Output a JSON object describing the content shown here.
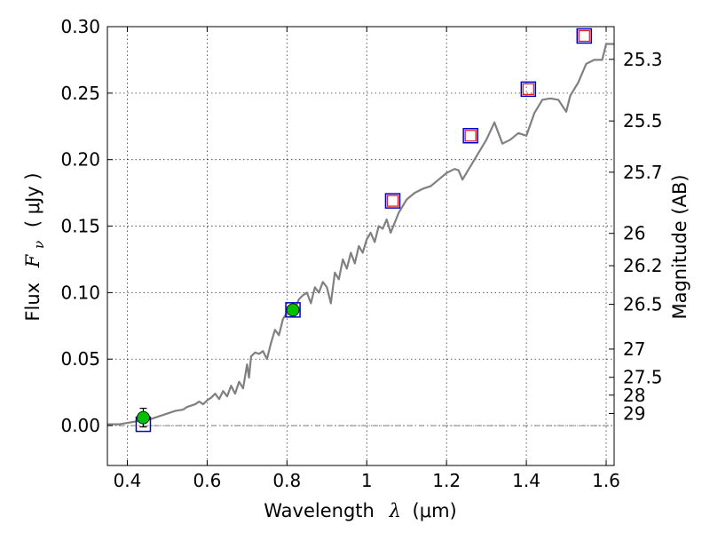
{
  "chart_data": {
    "type": "scatter",
    "title": "",
    "xlabel": {
      "prefix": "Wavelength",
      "lambda": "λ",
      "unit": "(μm)"
    },
    "ylabel": {
      "prefix": "Flux",
      "symbol": "F",
      "subscript": "ν",
      "unit": "( μJy )"
    },
    "y2label": "Magnitude (AB)",
    "xlim": [
      0.35,
      1.62
    ],
    "ylim": [
      -0.03,
      0.3
    ],
    "grid": true,
    "x_ticks": [
      {
        "value": 0.4,
        "label": "0.4"
      },
      {
        "value": 0.6,
        "label": "0.6"
      },
      {
        "value": 0.8,
        "label": "0.8"
      },
      {
        "value": 1.0,
        "label": "1"
      },
      {
        "value": 1.2,
        "label": "1.2"
      },
      {
        "value": 1.4,
        "label": "1.4"
      },
      {
        "value": 1.6,
        "label": "1.6"
      }
    ],
    "y_ticks": [
      {
        "value": 0.0,
        "label": "0.00"
      },
      {
        "value": 0.05,
        "label": "0.05"
      },
      {
        "value": 0.1,
        "label": "0.10"
      },
      {
        "value": 0.15,
        "label": "0.15"
      },
      {
        "value": 0.2,
        "label": "0.20"
      },
      {
        "value": 0.25,
        "label": "0.25"
      },
      {
        "value": 0.3,
        "label": "0.30"
      }
    ],
    "y2_ticks": [
      {
        "mag": 25.3,
        "label": "25.3"
      },
      {
        "mag": 25.5,
        "label": "25.5"
      },
      {
        "mag": 25.7,
        "label": "25.7"
      },
      {
        "mag": 26.0,
        "label": "26"
      },
      {
        "mag": 26.2,
        "label": "26.2"
      },
      {
        "mag": 26.5,
        "label": "26.5"
      },
      {
        "mag": 27.0,
        "label": "27"
      },
      {
        "mag": 27.5,
        "label": "27.5"
      },
      {
        "mag": 28.0,
        "label": "28"
      },
      {
        "mag": 29.0,
        "label": "29"
      }
    ],
    "series": [
      {
        "kind": "model_spectrum",
        "color": "#808080",
        "x": [
          0.35,
          0.38,
          0.4,
          0.42,
          0.44,
          0.46,
          0.48,
          0.5,
          0.52,
          0.54,
          0.55,
          0.57,
          0.58,
          0.59,
          0.6,
          0.61,
          0.62,
          0.63,
          0.64,
          0.65,
          0.66,
          0.67,
          0.68,
          0.69,
          0.7,
          0.705,
          0.71,
          0.72,
          0.73,
          0.74,
          0.75,
          0.76,
          0.77,
          0.78,
          0.79,
          0.8,
          0.81,
          0.82,
          0.83,
          0.84,
          0.85,
          0.86,
          0.87,
          0.88,
          0.89,
          0.9,
          0.91,
          0.92,
          0.93,
          0.94,
          0.95,
          0.96,
          0.97,
          0.98,
          0.99,
          1.0,
          1.01,
          1.02,
          1.03,
          1.04,
          1.05,
          1.06,
          1.08,
          1.1,
          1.12,
          1.14,
          1.16,
          1.18,
          1.2,
          1.22,
          1.23,
          1.24,
          1.26,
          1.28,
          1.3,
          1.32,
          1.34,
          1.36,
          1.38,
          1.4,
          1.42,
          1.44,
          1.46,
          1.48,
          1.5,
          1.51,
          1.53,
          1.55,
          1.57,
          1.59,
          1.6,
          1.62
        ],
        "y": [
          0.001,
          0.001,
          0.002,
          0.003,
          0.004,
          0.005,
          0.007,
          0.009,
          0.011,
          0.012,
          0.014,
          0.016,
          0.018,
          0.016,
          0.019,
          0.021,
          0.024,
          0.02,
          0.026,
          0.022,
          0.03,
          0.024,
          0.033,
          0.028,
          0.046,
          0.036,
          0.052,
          0.055,
          0.054,
          0.056,
          0.05,
          0.062,
          0.072,
          0.068,
          0.08,
          0.085,
          0.09,
          0.088,
          0.095,
          0.098,
          0.1,
          0.092,
          0.104,
          0.1,
          0.108,
          0.104,
          0.092,
          0.115,
          0.11,
          0.125,
          0.118,
          0.13,
          0.122,
          0.135,
          0.13,
          0.14,
          0.145,
          0.138,
          0.15,
          0.148,
          0.155,
          0.145,
          0.16,
          0.17,
          0.175,
          0.178,
          0.18,
          0.185,
          0.19,
          0.193,
          0.192,
          0.185,
          0.195,
          0.205,
          0.215,
          0.228,
          0.212,
          0.215,
          0.22,
          0.218,
          0.235,
          0.245,
          0.246,
          0.245,
          0.236,
          0.248,
          0.258,
          0.272,
          0.275,
          0.275,
          0.287,
          0.287
        ]
      },
      {
        "kind": "observed",
        "marker": "filled-circle",
        "color": "#00c000",
        "errorbar": true,
        "points": [
          {
            "x": 0.44,
            "y": 0.006,
            "yerr": 0.007
          },
          {
            "x": 0.815,
            "y": 0.087,
            "yerr": 0.003
          }
        ]
      },
      {
        "kind": "model_photometry",
        "marker": "open-square-large",
        "color": "#0000cc",
        "points": [
          {
            "x": 0.44,
            "y": 0.001
          },
          {
            "x": 0.815,
            "y": 0.087
          },
          {
            "x": 1.065,
            "y": 0.169
          },
          {
            "x": 1.26,
            "y": 0.218
          },
          {
            "x": 1.405,
            "y": 0.253
          },
          {
            "x": 1.545,
            "y": 0.293
          }
        ]
      },
      {
        "kind": "upper_limits",
        "marker": "open-square-small",
        "color": "#dd2222",
        "points": [
          {
            "x": 1.065,
            "y": 0.169
          },
          {
            "x": 1.26,
            "y": 0.218
          },
          {
            "x": 1.405,
            "y": 0.253
          },
          {
            "x": 1.545,
            "y": 0.293
          }
        ]
      }
    ]
  }
}
